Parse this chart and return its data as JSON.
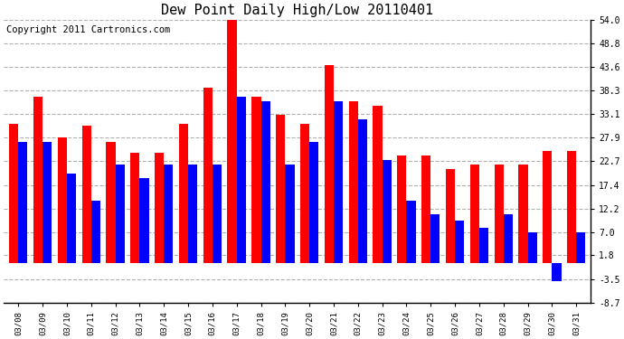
{
  "title": "Dew Point Daily High/Low 20110401",
  "copyright": "Copyright 2011 Cartronics.com",
  "dates": [
    "03/08",
    "03/09",
    "03/10",
    "03/11",
    "03/12",
    "03/13",
    "03/14",
    "03/15",
    "03/16",
    "03/17",
    "03/18",
    "03/19",
    "03/20",
    "03/21",
    "03/22",
    "03/23",
    "03/24",
    "03/25",
    "03/26",
    "03/27",
    "03/28",
    "03/29",
    "03/30",
    "03/31"
  ],
  "highs": [
    31.0,
    37.0,
    28.0,
    30.5,
    27.0,
    24.5,
    24.5,
    31.0,
    39.0,
    54.0,
    37.0,
    33.0,
    31.0,
    44.0,
    36.0,
    35.0,
    24.0,
    24.0,
    21.0,
    22.0,
    22.0,
    22.0,
    25.0,
    25.0
  ],
  "lows": [
    27.0,
    27.0,
    20.0,
    14.0,
    22.0,
    19.0,
    22.0,
    22.0,
    22.0,
    37.0,
    36.0,
    22.0,
    27.0,
    36.0,
    32.0,
    23.0,
    14.0,
    11.0,
    9.5,
    8.0,
    11.0,
    7.0,
    -4.0,
    7.0
  ],
  "ylim": [
    -8.7,
    54.0
  ],
  "yticks": [
    -8.7,
    -3.5,
    1.8,
    7.0,
    12.2,
    17.4,
    22.7,
    27.9,
    33.1,
    38.3,
    43.6,
    48.8,
    54.0
  ],
  "ytick_labels": [
    "-8.7",
    "-3.5",
    "1.8",
    "7.0",
    "12.2",
    "17.4",
    "22.7",
    "27.9",
    "33.1",
    "38.3",
    "43.6",
    "48.8",
    "54.0"
  ],
  "high_color": "#ff0000",
  "low_color": "#0000ff",
  "background_color": "#ffffff",
  "plot_bg_color": "#ffffff",
  "grid_color": "#b0b0b0",
  "title_fontsize": 11,
  "bar_width": 0.38,
  "copyright_fontsize": 7.5,
  "figsize": [
    6.9,
    3.75
  ],
  "dpi": 100
}
